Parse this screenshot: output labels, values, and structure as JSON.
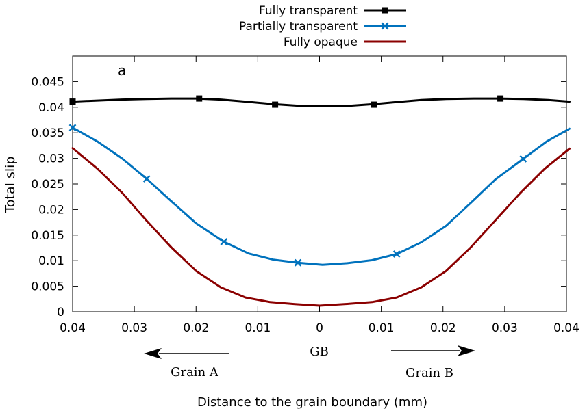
{
  "chart_data": {
    "type": "line",
    "panel_label": "a",
    "ylabel": "Total slip",
    "xlabel": "Distance to the grain boundary (mm)",
    "xlim": [
      -0.04,
      0.04
    ],
    "ylim": [
      0,
      0.05
    ],
    "x_ticks": [
      -0.04,
      -0.03,
      -0.02,
      -0.01,
      0,
      0.01,
      0.02,
      0.03,
      0.04
    ],
    "x_tick_labels": [
      "0.04",
      "0.03",
      "0.02",
      "0.01",
      "0",
      "0.01",
      "0.02",
      "0.03",
      "0.04"
    ],
    "y_ticks": [
      0,
      0.005,
      0.01,
      0.015,
      0.02,
      0.025,
      0.03,
      0.035,
      0.04,
      0.045
    ],
    "y_tick_labels": [
      "0",
      "0.005",
      "0.01",
      "0.015",
      "0.02",
      "0.025",
      "0.03",
      "0.035",
      "0.04",
      "0.045"
    ],
    "grid": false,
    "legend_position": "top-center (outside plot)",
    "annotations": {
      "gb": "GB",
      "left_grain": "Grain A",
      "right_grain": "Grain B"
    },
    "series": [
      {
        "name": "Fully transparent",
        "color": "#000000",
        "marker": "square",
        "x": [
          -0.04,
          -0.036,
          -0.032,
          -0.028,
          -0.024,
          -0.02,
          -0.016,
          -0.012,
          -0.0075,
          -0.0035,
          0,
          0.005,
          0.0088,
          0.0125,
          0.0165,
          0.0205,
          0.025,
          0.029,
          0.033,
          0.037,
          0.0405
        ],
        "y": [
          0.0411,
          0.0413,
          0.0415,
          0.0416,
          0.0417,
          0.0417,
          0.0415,
          0.0411,
          0.0406,
          0.0403,
          0.0403,
          0.0403,
          0.0406,
          0.041,
          0.0414,
          0.0416,
          0.0417,
          0.0417,
          0.0416,
          0.0414,
          0.0411
        ],
        "marker_x": [
          -0.04,
          -0.0195,
          -0.0072,
          0.0088,
          0.0293
        ],
        "marker_y": [
          0.0411,
          0.0417,
          0.0405,
          0.0405,
          0.0417
        ]
      },
      {
        "name": "Partially transparent",
        "color": "#0072bd",
        "marker": "x",
        "x": [
          -0.04,
          -0.036,
          -0.032,
          -0.028,
          -0.024,
          -0.02,
          -0.0155,
          -0.0115,
          -0.0075,
          -0.0035,
          0.0005,
          0.0045,
          0.0085,
          0.0125,
          0.0165,
          0.0205,
          0.0245,
          0.0285,
          0.033,
          0.0368,
          0.0405
        ],
        "y": [
          0.036,
          0.0333,
          0.03,
          0.026,
          0.0216,
          0.0173,
          0.0137,
          0.0114,
          0.0102,
          0.0096,
          0.0092,
          0.0095,
          0.0101,
          0.0113,
          0.0136,
          0.0168,
          0.0213,
          0.0259,
          0.0299,
          0.0333,
          0.0358
        ],
        "marker_x": [
          -0.04,
          -0.028,
          -0.0155,
          -0.0035,
          0.0125,
          0.033
        ],
        "marker_y": [
          0.036,
          0.026,
          0.0137,
          0.0096,
          0.0113,
          0.0299
        ]
      },
      {
        "name": "Fully opaque",
        "color": "#8b0000",
        "marker": "none",
        "x": [
          -0.04,
          -0.036,
          -0.032,
          -0.028,
          -0.024,
          -0.02,
          -0.016,
          -0.012,
          -0.008,
          -0.004,
          0,
          0.004,
          0.0085,
          0.0125,
          0.0165,
          0.0205,
          0.0245,
          0.0285,
          0.0325,
          0.0365,
          0.0405
        ],
        "y": [
          0.032,
          0.028,
          0.0233,
          0.0178,
          0.0126,
          0.008,
          0.0048,
          0.0028,
          0.0019,
          0.0015,
          0.0012,
          0.0015,
          0.0019,
          0.0028,
          0.0048,
          0.008,
          0.0126,
          0.0179,
          0.0232,
          0.028,
          0.0319
        ]
      }
    ]
  }
}
